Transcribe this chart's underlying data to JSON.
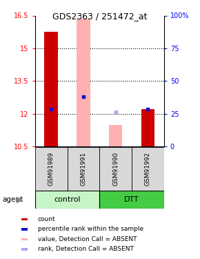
{
  "title": "GDS2363 / 251472_at",
  "ylim": [
    10.5,
    16.5
  ],
  "yticks": [
    10.5,
    12.0,
    13.5,
    15.0,
    16.5
  ],
  "ytick_labels": [
    "10.5",
    "12",
    "13.5",
    "15",
    "16.5"
  ],
  "y2tick_labels": [
    "0",
    "25",
    "50",
    "75",
    "100%"
  ],
  "samples": [
    "GSM91989",
    "GSM91991",
    "GSM91990",
    "GSM91992"
  ],
  "bar_bottoms": [
    10.5,
    10.5,
    10.5,
    10.5
  ],
  "bar_tops": [
    15.75,
    16.35,
    11.47,
    12.2
  ],
  "bar_colors": [
    "#cc0000",
    "#ffb0b0",
    "#ffb0b0",
    "#cc0000"
  ],
  "blue_sq_values": [
    12.2,
    12.78,
    12.08,
    12.22
  ],
  "blue_sq_colors": [
    "#1111cc",
    "#1111cc",
    "#aaaaee",
    "#1111cc"
  ],
  "grid_lines": [
    12.0,
    13.5,
    15.0
  ],
  "ctrl_color": "#c8f5c8",
  "dtt_color": "#44cc44",
  "legend_items": [
    {
      "color": "#cc0000",
      "label": "count"
    },
    {
      "color": "#1111cc",
      "label": "percentile rank within the sample"
    },
    {
      "color": "#ffb0b0",
      "label": "value, Detection Call = ABSENT"
    },
    {
      "color": "#aaaaee",
      "label": "rank, Detection Call = ABSENT"
    }
  ]
}
